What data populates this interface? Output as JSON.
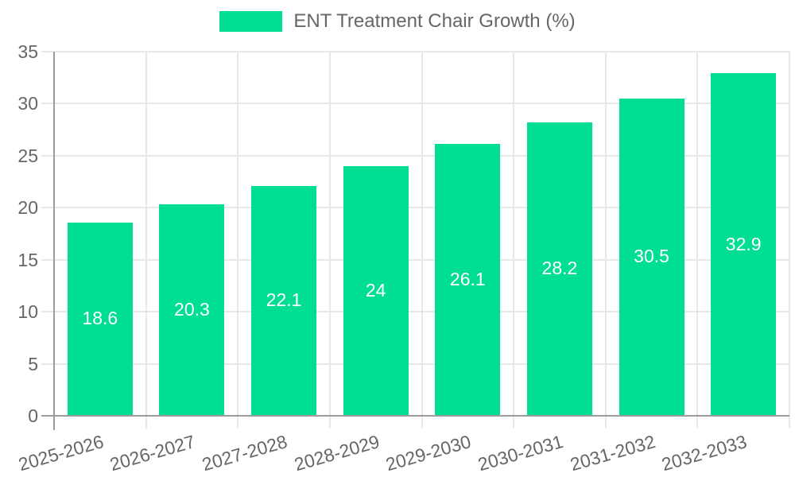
{
  "chart_data": {
    "type": "bar",
    "title": "ENT Treatment Chair Growth (%)",
    "categories": [
      "2025-2026",
      "2026-2027",
      "2027-2028",
      "2028-2029",
      "2029-2030",
      "2030-2031",
      "2031-2032",
      "2032-2033"
    ],
    "values": [
      18.6,
      20.3,
      22.1,
      24,
      26.1,
      28.2,
      30.5,
      32.9
    ],
    "value_labels": [
      "18.6",
      "20.3",
      "22.1",
      "24",
      "26.1",
      "28.2",
      "30.5",
      "32.9"
    ],
    "xlabel": "",
    "ylabel": "",
    "ylim": [
      0,
      35
    ],
    "yticks": [
      0,
      5,
      10,
      15,
      20,
      25,
      30,
      35
    ],
    "grid": "horizontal and vertical category boundaries",
    "legend_position": "top-center",
    "legend_entries": [
      "ENT Treatment Chair Growth (%)"
    ],
    "data_label_position": "inside-center"
  },
  "colors": {
    "bar": "#00de95",
    "bar_value_label": "#ffffff",
    "axis_text": "#666666",
    "legend_text": "#666666",
    "gridline": "#e8e8e8",
    "axis_line": "#9c9c9c",
    "background": "#ffffff"
  }
}
